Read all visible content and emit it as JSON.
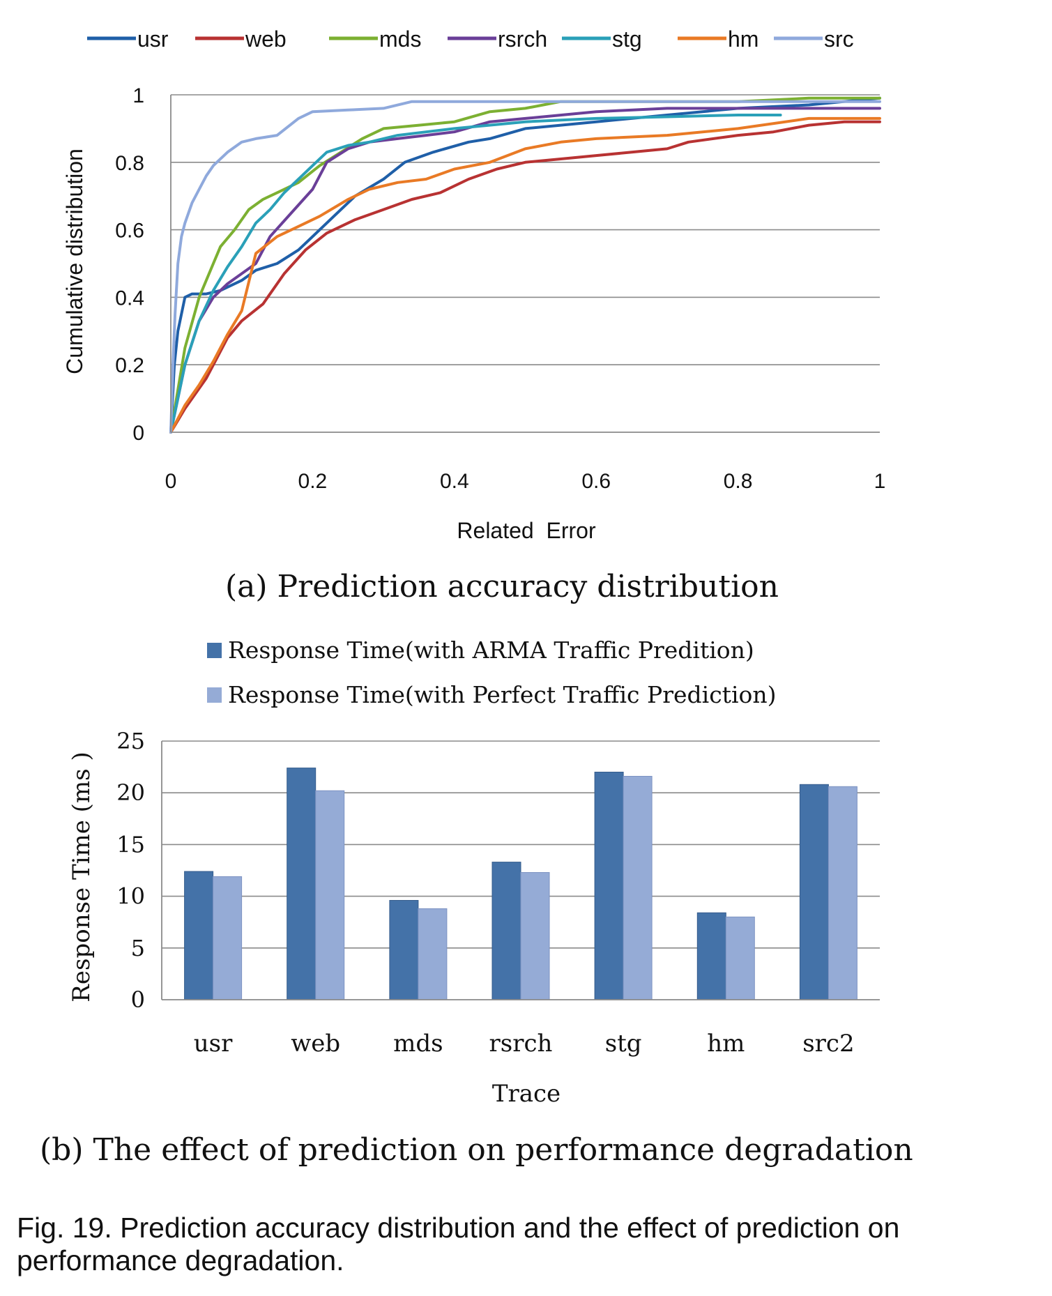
{
  "chart_data": [
    {
      "type": "line",
      "title": "",
      "xlabel": "Related  Error",
      "ylabel": "Cumulative distribution",
      "xlim": [
        0,
        1
      ],
      "ylim": [
        0,
        1
      ],
      "xticks": [
        "0",
        "0.2",
        "0.4",
        "0.6",
        "0.8",
        "1"
      ],
      "yticks": [
        "0",
        "0.2",
        "0.4",
        "0.6",
        "0.8",
        "1"
      ],
      "grid": "horizontal",
      "legend_position": "top",
      "series": [
        {
          "name": "usr",
          "color": "#1f5fa8",
          "x": [
            0,
            0.005,
            0.01,
            0.02,
            0.03,
            0.05,
            0.07,
            0.1,
            0.12,
            0.15,
            0.18,
            0.2,
            0.23,
            0.26,
            0.3,
            0.33,
            0.37,
            0.42,
            0.45,
            0.5,
            0.55,
            0.6,
            0.7,
            0.8,
            0.9,
            1.0
          ],
          "y": [
            0,
            0.2,
            0.3,
            0.4,
            0.41,
            0.41,
            0.42,
            0.45,
            0.48,
            0.5,
            0.54,
            0.58,
            0.64,
            0.7,
            0.75,
            0.8,
            0.83,
            0.86,
            0.87,
            0.9,
            0.91,
            0.92,
            0.94,
            0.96,
            0.97,
            0.99
          ]
        },
        {
          "name": "web",
          "color": "#b83232",
          "x": [
            0,
            0.02,
            0.05,
            0.08,
            0.1,
            0.13,
            0.16,
            0.19,
            0.22,
            0.26,
            0.3,
            0.34,
            0.38,
            0.42,
            0.46,
            0.5,
            0.55,
            0.6,
            0.65,
            0.7,
            0.73,
            0.8,
            0.85,
            0.9,
            0.95,
            1.0
          ],
          "y": [
            0,
            0.07,
            0.16,
            0.28,
            0.33,
            0.38,
            0.47,
            0.54,
            0.59,
            0.63,
            0.66,
            0.69,
            0.71,
            0.75,
            0.78,
            0.8,
            0.81,
            0.82,
            0.83,
            0.84,
            0.86,
            0.88,
            0.89,
            0.91,
            0.92,
            0.92
          ]
        },
        {
          "name": "mds",
          "color": "#7cb032",
          "x": [
            0,
            0.02,
            0.04,
            0.06,
            0.07,
            0.09,
            0.11,
            0.13,
            0.15,
            0.18,
            0.21,
            0.24,
            0.27,
            0.3,
            0.35,
            0.4,
            0.45,
            0.5,
            0.55,
            0.6,
            0.7,
            0.8,
            0.9,
            1.0
          ],
          "y": [
            0,
            0.25,
            0.4,
            0.5,
            0.55,
            0.6,
            0.66,
            0.69,
            0.71,
            0.74,
            0.79,
            0.83,
            0.87,
            0.9,
            0.91,
            0.92,
            0.95,
            0.96,
            0.98,
            0.98,
            0.98,
            0.98,
            0.99,
            0.99
          ]
        },
        {
          "name": "rsrch",
          "color": "#6a3f98",
          "x": [
            0,
            0.02,
            0.04,
            0.06,
            0.08,
            0.1,
            0.12,
            0.14,
            0.17,
            0.2,
            0.22,
            0.25,
            0.28,
            0.32,
            0.36,
            0.4,
            0.45,
            0.5,
            0.6,
            0.7,
            0.8,
            0.9,
            1.0
          ],
          "y": [
            0,
            0.2,
            0.33,
            0.4,
            0.44,
            0.47,
            0.5,
            0.58,
            0.65,
            0.72,
            0.8,
            0.84,
            0.86,
            0.87,
            0.88,
            0.89,
            0.92,
            0.93,
            0.95,
            0.96,
            0.96,
            0.96,
            0.96
          ]
        },
        {
          "name": "stg",
          "color": "#2aa0b8",
          "x": [
            0,
            0.02,
            0.04,
            0.06,
            0.08,
            0.1,
            0.12,
            0.14,
            0.16,
            0.18,
            0.2,
            0.22,
            0.25,
            0.28,
            0.32,
            0.36,
            0.4,
            0.5,
            0.6,
            0.7,
            0.8,
            0.86
          ],
          "y": [
            0,
            0.2,
            0.33,
            0.42,
            0.49,
            0.55,
            0.62,
            0.66,
            0.71,
            0.75,
            0.79,
            0.83,
            0.85,
            0.86,
            0.88,
            0.89,
            0.9,
            0.92,
            0.93,
            0.935,
            0.94,
            0.94
          ]
        },
        {
          "name": "hm",
          "color": "#e97a25",
          "x": [
            0,
            0.02,
            0.04,
            0.06,
            0.08,
            0.1,
            0.12,
            0.15,
            0.18,
            0.21,
            0.25,
            0.28,
            0.32,
            0.36,
            0.4,
            0.45,
            0.5,
            0.55,
            0.6,
            0.7,
            0.8,
            0.9,
            1.0
          ],
          "y": [
            0,
            0.08,
            0.14,
            0.21,
            0.29,
            0.36,
            0.53,
            0.58,
            0.61,
            0.64,
            0.69,
            0.72,
            0.74,
            0.75,
            0.78,
            0.8,
            0.84,
            0.86,
            0.87,
            0.88,
            0.9,
            0.93,
            0.93
          ]
        },
        {
          "name": "src",
          "color": "#8fa9dc",
          "x": [
            0,
            0.003,
            0.006,
            0.01,
            0.015,
            0.02,
            0.03,
            0.04,
            0.05,
            0.06,
            0.08,
            0.1,
            0.12,
            0.15,
            0.18,
            0.2,
            0.25,
            0.3,
            0.34,
            0.4,
            0.5,
            0.6,
            0.7,
            0.8,
            0.9,
            1.0
          ],
          "y": [
            0,
            0.2,
            0.35,
            0.5,
            0.58,
            0.62,
            0.68,
            0.72,
            0.76,
            0.79,
            0.83,
            0.86,
            0.87,
            0.88,
            0.93,
            0.95,
            0.955,
            0.96,
            0.98,
            0.98,
            0.98,
            0.98,
            0.98,
            0.98,
            0.98,
            0.98
          ]
        }
      ]
    },
    {
      "type": "bar",
      "title": "",
      "xlabel": "Trace",
      "ylabel": "Response Time (ms )",
      "ylim": [
        0,
        25
      ],
      "yticks": [
        "0",
        "5",
        "10",
        "15",
        "20",
        "25"
      ],
      "grid": "horizontal",
      "legend_position": "top",
      "categories": [
        "usr",
        "web",
        "mds",
        "rsrch",
        "stg",
        "hm",
        "src2"
      ],
      "series": [
        {
          "name": "Response Time(with ARMA Traffic Predition)",
          "color": "#4472a8",
          "values": [
            12.4,
            22.4,
            9.6,
            13.3,
            22.0,
            8.4,
            20.8
          ]
        },
        {
          "name": "Response Time(with Perfect Traffic Prediction)",
          "color": "#95abd6",
          "values": [
            11.9,
            20.2,
            8.8,
            12.3,
            21.6,
            8.0,
            20.6
          ]
        }
      ]
    }
  ],
  "captions": {
    "a": "(a) Prediction accuracy distribution",
    "b": "(b) The effect of prediction on performance degradation",
    "figure": "Fig. 19. Prediction accuracy distribution and the effect of prediction on performance degradation."
  }
}
